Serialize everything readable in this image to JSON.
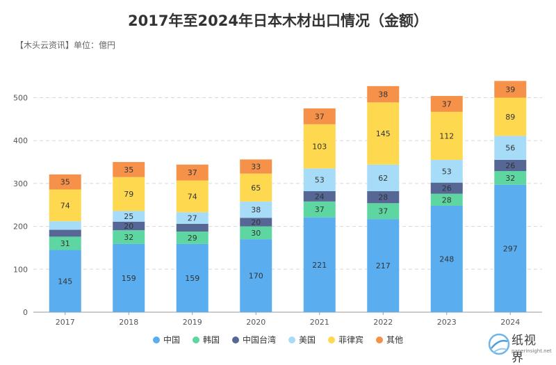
{
  "header": {
    "title": "2017年至2024年日本木材出口情况（金额）",
    "subtitle": "【木头云资讯】单位：億円"
  },
  "logo": {
    "main": "纸视界",
    "sub": "paperinsight.net"
  },
  "colors": {
    "中国": "#5aaef0",
    "韩国": "#5ed6a2",
    "中国台湾": "#566795",
    "美国": "#a7dcf8",
    "菲律宾": "#fed84f",
    "其他": "#f6914a"
  },
  "chart_data": {
    "type": "bar",
    "stacked": true,
    "title": "2017年至2024年日本木材出口情况（金额）",
    "unit": "億円",
    "categories": [
      "2017",
      "2018",
      "2019",
      "2020",
      "2021",
      "2022",
      "2023",
      "2024"
    ],
    "series": [
      {
        "name": "中国",
        "values": [
          145,
          159,
          159,
          170,
          221,
          217,
          248,
          297
        ]
      },
      {
        "name": "韩国",
        "values": [
          31,
          32,
          29,
          30,
          37,
          37,
          28,
          32
        ]
      },
      {
        "name": "中国台湾",
        "values": [
          16,
          20,
          18,
          20,
          24,
          28,
          26,
          26
        ]
      },
      {
        "name": "美国",
        "values": [
          20,
          25,
          27,
          38,
          53,
          62,
          53,
          56
        ]
      },
      {
        "name": "菲律宾",
        "values": [
          74,
          79,
          74,
          65,
          103,
          145,
          112,
          89
        ]
      },
      {
        "name": "其他",
        "values": [
          35,
          35,
          37,
          33,
          37,
          38,
          37,
          39
        ]
      }
    ],
    "labels_shown": [
      [
        true,
        true,
        true,
        true,
        true,
        true,
        true,
        true
      ],
      [
        true,
        true,
        true,
        true,
        true,
        true,
        true,
        true
      ],
      [
        false,
        true,
        false,
        true,
        true,
        true,
        true,
        true
      ],
      [
        false,
        true,
        true,
        true,
        true,
        true,
        true,
        true
      ],
      [
        true,
        true,
        true,
        true,
        true,
        true,
        true,
        true
      ],
      [
        true,
        true,
        true,
        true,
        true,
        true,
        true,
        true
      ]
    ],
    "yticks": [
      0,
      100,
      200,
      300,
      400,
      500
    ],
    "ylim": [
      0,
      560
    ],
    "grid": true,
    "legend_position": "bottom-center"
  }
}
